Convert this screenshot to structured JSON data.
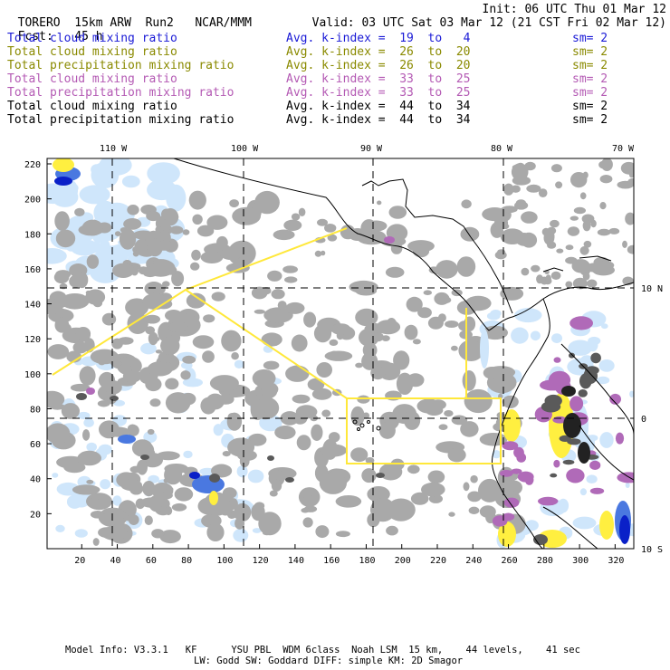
{
  "header": {
    "model_name": "TORERO",
    "resolution": "15km ARW",
    "run": "Run2",
    "org": "NCAR/MMM",
    "init": "Init: 06 UTC Thu 01 Mar 12",
    "fcst_label": "Fcst:",
    "fcst_value": "45 h",
    "valid": "Valid: 03 UTC Sat 03 Mar 12 (21 CST Fri 02 Mar 12)"
  },
  "legend": [
    {
      "field": "Total cloud mixing ratio",
      "kindex": "Avg. k-index =  19  to   4",
      "sm": "sm= 2",
      "color": "#1a1ad6"
    },
    {
      "field": "Total cloud mixing ratio",
      "kindex": "Avg. k-index =  26  to  20",
      "sm": "sm= 2",
      "color": "#8a8a00"
    },
    {
      "field": "Total precipitation mixing ratio",
      "kindex": "Avg. k-index =  26  to  20",
      "sm": "sm= 2",
      "color": "#8a8a00"
    },
    {
      "field": "Total cloud mixing ratio",
      "kindex": "Avg. k-index =  33  to  25",
      "sm": "sm= 2",
      "color": "#b45ab4"
    },
    {
      "field": "Total precipitation mixing ratio",
      "kindex": "Avg. k-index =  33  to  25",
      "sm": "sm= 2",
      "color": "#b45ab4"
    },
    {
      "field": "Total cloud mixing ratio",
      "kindex": "Avg. k-index =  44  to  34",
      "sm": "sm= 2",
      "color": "#000000"
    },
    {
      "field": "Total precipitation mixing ratio",
      "kindex": "Avg. k-index =  44  to  34",
      "sm": "sm= 2",
      "color": "#000000"
    }
  ],
  "map": {
    "lon_labels": [
      "110 W",
      "100 W",
      "90 W",
      "80 W",
      "70 W"
    ],
    "lat_labels": [
      "10 N",
      "0",
      "10 S"
    ],
    "x_ticks": [
      "20",
      "40",
      "60",
      "80",
      "100",
      "120",
      "140",
      "160",
      "180",
      "200",
      "220",
      "240",
      "260",
      "280",
      "300",
      "320"
    ],
    "y_ticks": [
      "220",
      "200",
      "180",
      "160",
      "140",
      "120",
      "100",
      "80",
      "60",
      "40",
      "20"
    ],
    "colors": {
      "cloud_gray": "#a9a9a9",
      "cloud_dark": "#5a5a5a",
      "cloud_black": "#222222",
      "light_blue": "#cfe6fb",
      "blue": "#4a78e0",
      "dark_blue": "#0a20c8",
      "magenta": "#b06ab8",
      "yellow": "#ffef40",
      "coast": "#000000",
      "boxes": "#ffe83a"
    }
  },
  "footer": {
    "line1": "Model Info: V3.3.1   KF      YSU PBL  WDM 6class  Noah LSM  15 km,    44 levels,    41 sec",
    "line2": "LW: Godd SW: Goddard DIFF: simple KM: 2D Smagor"
  }
}
